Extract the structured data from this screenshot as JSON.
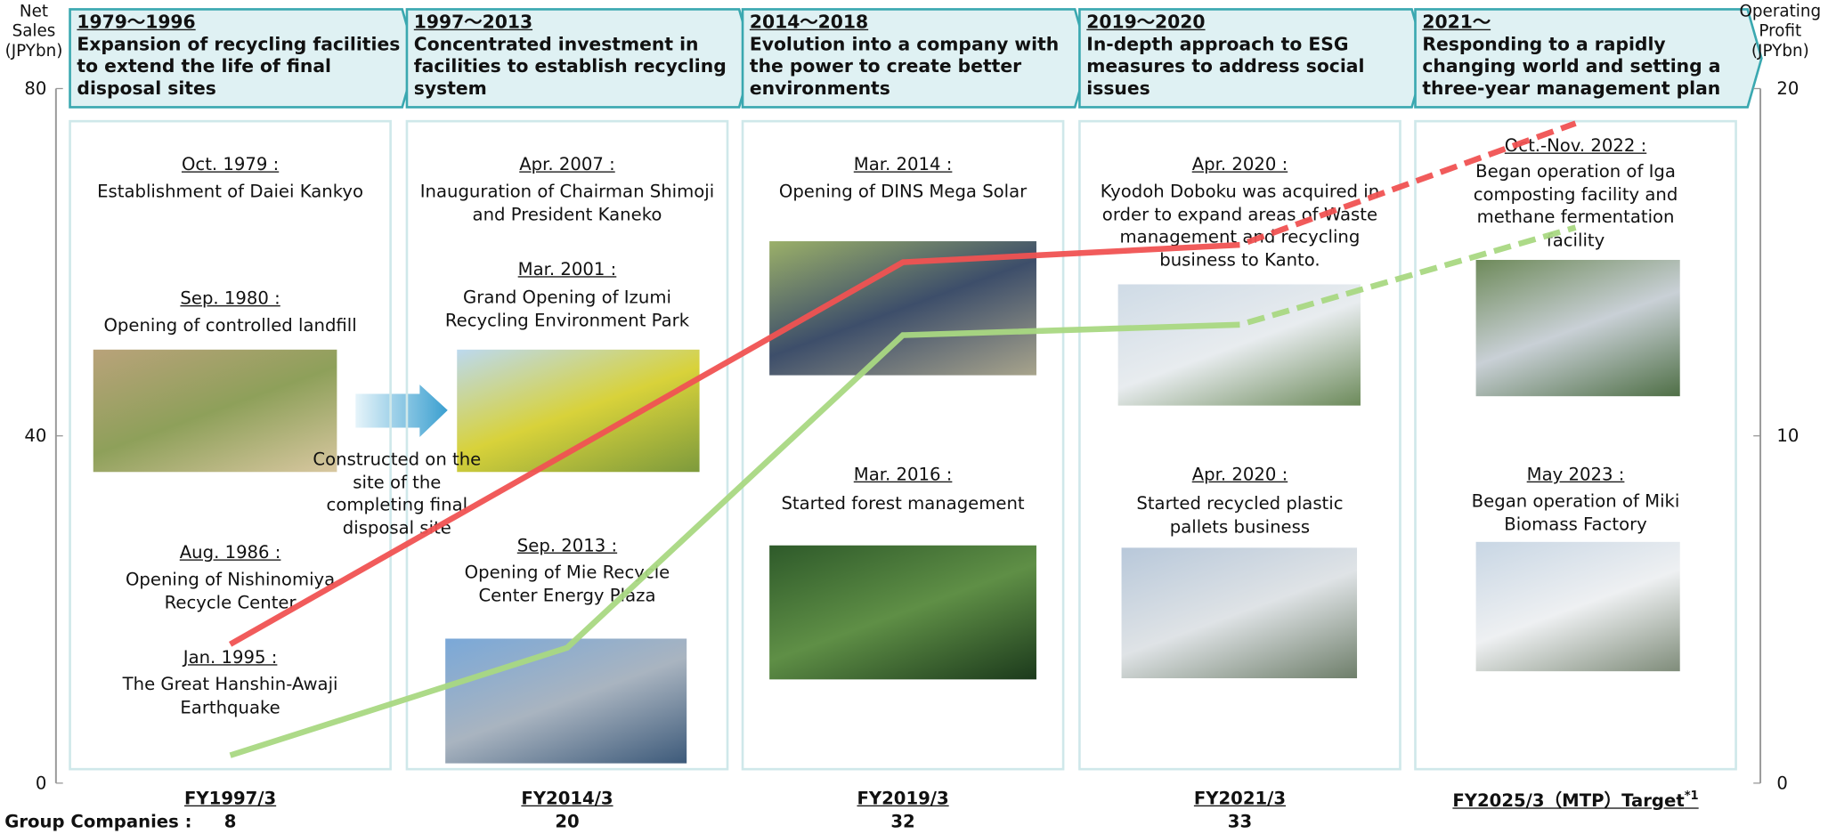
{
  "chart_data": {
    "type": "line",
    "y_label": "Net Sales (JPYbn)",
    "y2_label": "Operating Profit (JPYbn)",
    "categories": [
      "FY1997/3",
      "FY2014/3",
      "FY2019/3",
      "FY2021/3",
      "FY2025/3（MTP）Target"
    ],
    "category_marks": [
      null,
      null,
      null,
      null,
      "*1"
    ],
    "series": [
      {
        "color": "#f05252",
        "values": [
          16,
          38,
          60,
          62,
          76
        ],
        "dashed_from": 3
      },
      {
        "color": "#a9d882",
        "values": [
          0.8,
          3.9,
          12.9,
          13.2,
          16.0
        ],
        "axis": "y2",
        "dashed_from": 3
      }
    ],
    "ylim": [
      0,
      80
    ],
    "yticks": [
      0,
      40,
      80
    ],
    "y2lim": [
      0,
      20
    ],
    "y2ticks": [
      0,
      10,
      20
    ],
    "group_companies": {
      "label": "Group Companies :",
      "values": [
        8,
        20,
        32,
        33,
        null
      ]
    }
  },
  "timeline": [
    {
      "period": "1979～1996",
      "title": "Expansion of recycling facilities to extend the life of final disposal sites",
      "events": [
        {
          "date": "Oct. 1979 :",
          "text": "Establishment of Daiei Kankyo"
        },
        {
          "date": "Sep. 1980 :",
          "text": "Opening of controlled landfill"
        },
        {
          "date": "Aug. 1986 :",
          "text": "Opening of Nishinomiya Recycle Center"
        },
        {
          "date": "Jan. 1995 :",
          "text": "The Great Hanshin-Awaji Earthquake"
        }
      ]
    },
    {
      "period": "1997～2013",
      "title": "Concentrated investment in facilities to establish recycling system",
      "events": [
        {
          "date": "Apr. 2007 :",
          "text": "Inauguration of Chairman Shimoji and President Kaneko"
        },
        {
          "date": "Mar. 2001 :",
          "text": "Grand Opening of Izumi Recycling Environment Park"
        },
        {
          "date": "Sep. 2013 :",
          "text": "Opening of Mie Recycle Center Energy Plaza"
        }
      ]
    },
    {
      "period": "2014～2018",
      "title": "Evolution into a company with the power to create better environments",
      "events": [
        {
          "date": "Mar. 2014 :",
          "text": "Opening of DINS Mega Solar"
        },
        {
          "date": "Mar. 2016 :",
          "text": "Started forest management"
        }
      ]
    },
    {
      "period": "2019～2020",
      "title": "In-depth approach to ESG measures to address social issues",
      "events": [
        {
          "date": "Apr. 2020 :",
          "text": "Kyodoh Doboku was acquired in order to expand areas of Waste management and recycling business to Kanto."
        },
        {
          "date": "Apr. 2020 :",
          "text": "Started recycled plastic pallets business"
        }
      ]
    },
    {
      "period": "2021～",
      "title": "Responding to a rapidly changing world and setting a three-year management plan",
      "events": [
        {
          "date": "Oct.-Nov.  2022 :",
          "text": "Began operation of Iga composting facility and methane fermentation facility"
        },
        {
          "date": "May 2023 :",
          "text": "Began operation of Miki Biomass Factory"
        }
      ]
    }
  ],
  "note": "Constructed on the site of the completing final disposal site"
}
